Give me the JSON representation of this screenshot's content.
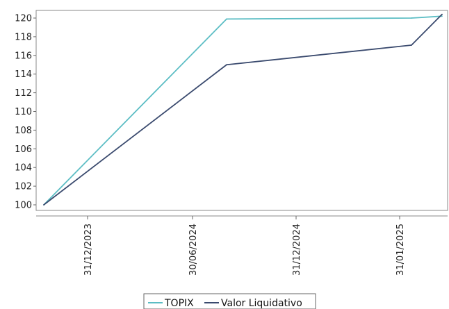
{
  "chart_data": {
    "type": "line",
    "title": "",
    "xlabel": "",
    "ylabel": "",
    "ylim": [
      99,
      120.6
    ],
    "y_ticks": [
      100,
      102,
      104,
      106,
      108,
      110,
      112,
      114,
      116,
      118,
      120
    ],
    "x_ticks": [
      {
        "label": "31/12/2023",
        "date": "2023-12-31"
      },
      {
        "label": "30/06/2024",
        "date": "2024-06-30"
      },
      {
        "label": "31/12/2024",
        "date": "2024-12-31"
      },
      {
        "label": "31/01/2025",
        "date": "2025-01-31"
      }
    ],
    "x": [
      "2023-12-01",
      "2024-07-15",
      "2025-01-20",
      "2025-02-05"
    ],
    "series": [
      {
        "name": "TOPIX",
        "color": "#5bbdc4",
        "values": [
          100.0,
          119.9,
          120.0,
          120.2
        ]
      },
      {
        "name": "Valor Liquidativo",
        "color": "#3a4a6e",
        "values": [
          100.0,
          115.0,
          117.1,
          120.4
        ]
      }
    ],
    "legend_position": "bottom",
    "grid": false,
    "x_axis_scale": "nonlinear"
  }
}
